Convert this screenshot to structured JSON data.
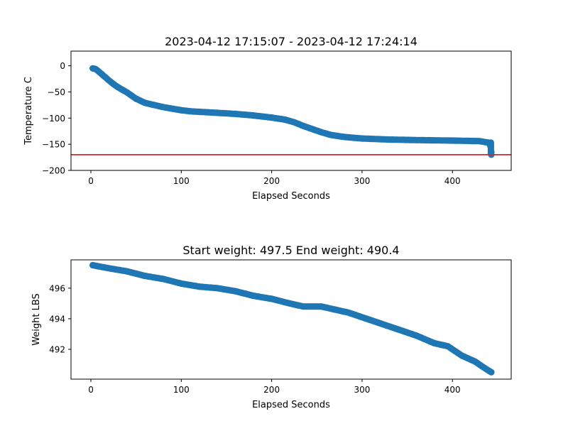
{
  "colors": {
    "marker": "#1f77b4",
    "threshold": "#d62728",
    "axis": "#000000"
  },
  "chart_data": [
    {
      "type": "scatter",
      "title": "2023-04-12 17:15:07 - 2023-04-12 17:24:14",
      "xlabel": "Elapsed Seconds",
      "ylabel": "Temperature C",
      "xlim": [
        -22,
        465
      ],
      "ylim": [
        -200,
        28
      ],
      "xticks": [
        0,
        100,
        200,
        300,
        400
      ],
      "yticks": [
        0,
        -50,
        -100,
        -150,
        -200
      ],
      "ytick_labels": [
        "0",
        "−50",
        "−100",
        "−150",
        "−200"
      ],
      "grid": false,
      "hline": {
        "y": -170,
        "color": "#d62728"
      },
      "curve": [
        [
          2,
          -5
        ],
        [
          5,
          -6
        ],
        [
          8,
          -10
        ],
        [
          12,
          -16
        ],
        [
          16,
          -22
        ],
        [
          20,
          -28
        ],
        [
          25,
          -35
        ],
        [
          30,
          -41
        ],
        [
          35,
          -46
        ],
        [
          40,
          -51
        ],
        [
          45,
          -57
        ],
        [
          50,
          -63
        ],
        [
          55,
          -67
        ],
        [
          60,
          -71
        ],
        [
          70,
          -75
        ],
        [
          80,
          -79
        ],
        [
          90,
          -82
        ],
        [
          100,
          -85
        ],
        [
          110,
          -87
        ],
        [
          120,
          -88
        ],
        [
          140,
          -90
        ],
        [
          160,
          -92
        ],
        [
          180,
          -95
        ],
        [
          200,
          -99
        ],
        [
          215,
          -103
        ],
        [
          225,
          -108
        ],
        [
          235,
          -115
        ],
        [
          245,
          -121
        ],
        [
          255,
          -127
        ],
        [
          265,
          -132
        ],
        [
          280,
          -136
        ],
        [
          300,
          -139
        ],
        [
          330,
          -141
        ],
        [
          360,
          -142
        ],
        [
          400,
          -143
        ],
        [
          430,
          -144
        ],
        [
          440,
          -147
        ],
        [
          442,
          -153
        ],
        [
          443,
          -165
        ],
        [
          443,
          -170
        ]
      ]
    },
    {
      "type": "scatter",
      "title": "Start weight: 497.5 End weight: 490.4",
      "xlabel": "Elapsed Seconds",
      "ylabel": "Weight LBS",
      "xlim": [
        -22,
        465
      ],
      "ylim": [
        490.05,
        497.85
      ],
      "xticks": [
        0,
        100,
        200,
        300,
        400
      ],
      "yticks": [
        492,
        494,
        496
      ],
      "ytick_labels": [
        "492",
        "494",
        "496"
      ],
      "grid": false,
      "curve": [
        [
          2,
          497.5
        ],
        [
          20,
          497.3
        ],
        [
          40,
          497.1
        ],
        [
          60,
          496.8
        ],
        [
          80,
          496.6
        ],
        [
          100,
          496.3
        ],
        [
          120,
          496.1
        ],
        [
          140,
          496.0
        ],
        [
          160,
          495.8
        ],
        [
          180,
          495.5
        ],
        [
          200,
          495.3
        ],
        [
          220,
          495.0
        ],
        [
          235,
          494.8
        ],
        [
          255,
          494.8
        ],
        [
          270,
          494.6
        ],
        [
          285,
          494.4
        ],
        [
          300,
          494.1
        ],
        [
          320,
          493.7
        ],
        [
          340,
          493.3
        ],
        [
          360,
          492.9
        ],
        [
          380,
          492.4
        ],
        [
          395,
          492.2
        ],
        [
          410,
          491.6
        ],
        [
          425,
          491.2
        ],
        [
          435,
          490.8
        ],
        [
          443,
          490.5
        ]
      ]
    }
  ]
}
